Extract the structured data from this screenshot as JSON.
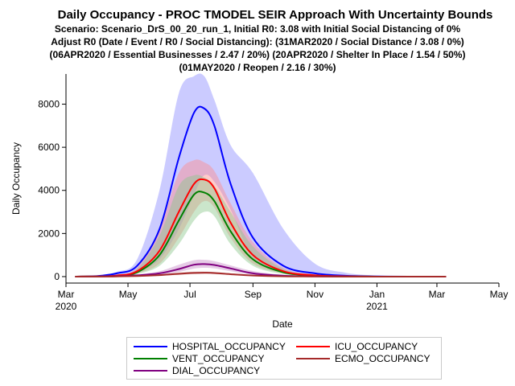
{
  "title": {
    "main": "Daily Occupancy - PROC TMODEL SEIR Approach With Uncertainty Bounds",
    "lines": [
      "Scenario: Scenario_DrS_00_20_run_1, Initial R0: 3.08 with Initial Social Distancing of 0%",
      "Adjust R0 (Date / Event / R0 / Social Distancing): (31MAR2020 / Social Distance / 3.08 / 0%)",
      "(06APR2020 / Essential Businesses / 2.47 / 20%) (20APR2020 / Shelter In Place / 1.54 / 50%)",
      "(01MAY2020 / Reopen / 2.16 / 30%)"
    ]
  },
  "chart_data": {
    "type": "line",
    "xlabel": "Date",
    "ylabel": "Daily Occupancy",
    "x_ticks": [
      {
        "date": "2020-03-01",
        "label": "Mar",
        "sublabel": "2020"
      },
      {
        "date": "2020-05-01",
        "label": "May",
        "sublabel": ""
      },
      {
        "date": "2020-07-01",
        "label": "Jul",
        "sublabel": ""
      },
      {
        "date": "2020-09-01",
        "label": "Sep",
        "sublabel": ""
      },
      {
        "date": "2020-11-01",
        "label": "Nov",
        "sublabel": ""
      },
      {
        "date": "2021-01-01",
        "label": "Jan",
        "sublabel": "2021"
      },
      {
        "date": "2021-03-01",
        "label": "Mar",
        "sublabel": ""
      },
      {
        "date": "2021-05-01",
        "label": "May",
        "sublabel": ""
      }
    ],
    "y_ticks": [
      0,
      2000,
      4000,
      6000,
      8000
    ],
    "ylim": [
      -300,
      9400
    ],
    "xlim": [
      "2020-03-01",
      "2021-05-01"
    ],
    "grid": false,
    "legend_position": "bottom",
    "series": [
      {
        "name": "HOSPITAL_OCCUPANCY",
        "color": "#0000ff",
        "band_color": "#8c8cff",
        "x": [
          "2020-03-10",
          "2020-04-01",
          "2020-04-20",
          "2020-05-10",
          "2020-06-01",
          "2020-06-20",
          "2020-07-05",
          "2020-07-15",
          "2020-07-25",
          "2020-08-10",
          "2020-09-01",
          "2020-10-01",
          "2020-11-01",
          "2020-12-01",
          "2021-01-01",
          "2021-02-01",
          "2021-03-10"
        ],
        "values": [
          0,
          30,
          150,
          500,
          2200,
          5500,
          7600,
          7800,
          7000,
          4300,
          1800,
          500,
          150,
          40,
          10,
          0,
          0
        ],
        "upper": [
          0,
          50,
          220,
          800,
          4000,
          8500,
          9300,
          9300,
          8200,
          6100,
          4800,
          2200,
          600,
          180,
          50,
          20,
          0
        ],
        "lower": [
          0,
          10,
          60,
          200,
          800,
          2200,
          3800,
          4700,
          4400,
          3100,
          900,
          200,
          40,
          10,
          0,
          0,
          0
        ]
      },
      {
        "name": "ICU_OCCUPANCY",
        "color": "#ff0000",
        "band_color": "#ff8c8c",
        "x": [
          "2020-03-10",
          "2020-04-01",
          "2020-04-20",
          "2020-05-10",
          "2020-06-01",
          "2020-06-20",
          "2020-07-05",
          "2020-07-15",
          "2020-07-25",
          "2020-08-10",
          "2020-09-01",
          "2020-10-01",
          "2020-11-01",
          "2020-12-01",
          "2021-01-01",
          "2021-02-01",
          "2021-03-10"
        ],
        "values": [
          0,
          10,
          50,
          250,
          1200,
          3000,
          4300,
          4500,
          4100,
          2500,
          1000,
          250,
          60,
          15,
          0,
          0,
          0
        ],
        "upper": [
          0,
          20,
          80,
          420,
          2200,
          4800,
          5400,
          5300,
          4900,
          3400,
          1600,
          400,
          100,
          30,
          5,
          0,
          0
        ],
        "lower": [
          0,
          5,
          30,
          150,
          600,
          1800,
          3000,
          3500,
          3200,
          1800,
          600,
          150,
          30,
          5,
          0,
          0,
          0
        ]
      },
      {
        "name": "VENT_OCCUPANCY",
        "color": "#008000",
        "band_color": "#8cc88c",
        "x": [
          "2020-03-10",
          "2020-04-01",
          "2020-04-20",
          "2020-05-10",
          "2020-06-01",
          "2020-06-20",
          "2020-07-05",
          "2020-07-15",
          "2020-07-25",
          "2020-08-10",
          "2020-09-01",
          "2020-10-01",
          "2020-11-01",
          "2020-12-01",
          "2021-01-01",
          "2021-02-01",
          "2021-03-10"
        ],
        "values": [
          0,
          8,
          40,
          200,
          1000,
          2600,
          3800,
          3900,
          3500,
          2100,
          800,
          200,
          50,
          10,
          0,
          0,
          0
        ],
        "upper": [
          0,
          15,
          70,
          350,
          1900,
          4200,
          4700,
          4600,
          4200,
          3000,
          1400,
          350,
          80,
          20,
          5,
          0,
          0
        ],
        "lower": [
          0,
          4,
          25,
          120,
          500,
          1500,
          2600,
          3000,
          2800,
          1500,
          500,
          120,
          25,
          5,
          0,
          0,
          0
        ]
      },
      {
        "name": "ECMO_OCCUPANCY",
        "color": "#a52a2a",
        "band_color": "#d28c8c",
        "x": [
          "2020-03-10",
          "2020-04-01",
          "2020-04-20",
          "2020-05-10",
          "2020-06-01",
          "2020-06-20",
          "2020-07-05",
          "2020-07-15",
          "2020-07-25",
          "2020-08-10",
          "2020-09-01",
          "2020-10-01",
          "2020-11-01",
          "2020-12-01",
          "2021-01-01",
          "2021-02-01",
          "2021-03-10"
        ],
        "values": [
          0,
          2,
          8,
          30,
          70,
          130,
          170,
          180,
          165,
          110,
          50,
          15,
          5,
          0,
          0,
          0,
          0
        ],
        "upper": [
          0,
          3,
          12,
          45,
          110,
          190,
          230,
          235,
          215,
          150,
          75,
          25,
          8,
          2,
          0,
          0,
          0
        ],
        "lower": [
          0,
          1,
          5,
          20,
          40,
          80,
          115,
          125,
          115,
          75,
          30,
          8,
          2,
          0,
          0,
          0,
          0
        ]
      },
      {
        "name": "DIAL_OCCUPANCY",
        "color": "#800080",
        "band_color": "#c88cc8",
        "x": [
          "2020-03-10",
          "2020-04-01",
          "2020-04-20",
          "2020-05-10",
          "2020-06-01",
          "2020-06-20",
          "2020-07-05",
          "2020-07-15",
          "2020-07-25",
          "2020-08-10",
          "2020-09-01",
          "2020-10-01",
          "2020-11-01",
          "2020-12-01",
          "2021-01-01",
          "2021-02-01",
          "2021-03-10"
        ],
        "values": [
          0,
          5,
          20,
          60,
          150,
          350,
          550,
          580,
          540,
          380,
          150,
          40,
          10,
          0,
          0,
          0,
          0
        ],
        "upper": [
          0,
          8,
          35,
          100,
          250,
          550,
          760,
          780,
          720,
          520,
          260,
          80,
          20,
          5,
          0,
          0,
          0
        ],
        "lower": [
          0,
          2,
          12,
          35,
          90,
          220,
          370,
          410,
          380,
          250,
          90,
          20,
          5,
          0,
          0,
          0,
          0
        ]
      }
    ]
  },
  "legend": {
    "items": [
      {
        "label": "HOSPITAL_OCCUPANCY",
        "color": "#0000ff"
      },
      {
        "label": "ICU_OCCUPANCY",
        "color": "#ff0000"
      },
      {
        "label": "VENT_OCCUPANCY",
        "color": "#008000"
      },
      {
        "label": "ECMO_OCCUPANCY",
        "color": "#a52a2a"
      },
      {
        "label": "DIAL_OCCUPANCY",
        "color": "#800080"
      }
    ]
  }
}
